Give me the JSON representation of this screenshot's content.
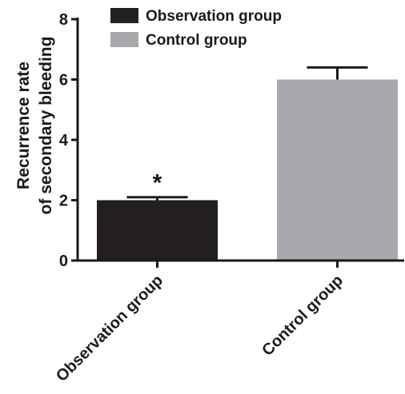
{
  "chart_data": {
    "type": "bar",
    "categories": [
      "Observation group",
      "Control group"
    ],
    "values": [
      2.0,
      6.0
    ],
    "errors": [
      0.1,
      0.4
    ],
    "colors": [
      "#231f20",
      "#a7a9ac"
    ],
    "ylabel_lines": [
      "Recurrence rate",
      "of secondary bleeding"
    ],
    "ylim": [
      0,
      8
    ],
    "yticks": [
      "0",
      "2",
      "4",
      "6",
      "8"
    ],
    "legend": {
      "placement": "top",
      "entries": [
        {
          "label": "Observation group",
          "color": "#231f20"
        },
        {
          "label": "Control group",
          "color": "#a7a9ac"
        }
      ]
    },
    "annotations": [
      {
        "category": "Observation group",
        "text": "*"
      }
    ],
    "grid": false
  }
}
